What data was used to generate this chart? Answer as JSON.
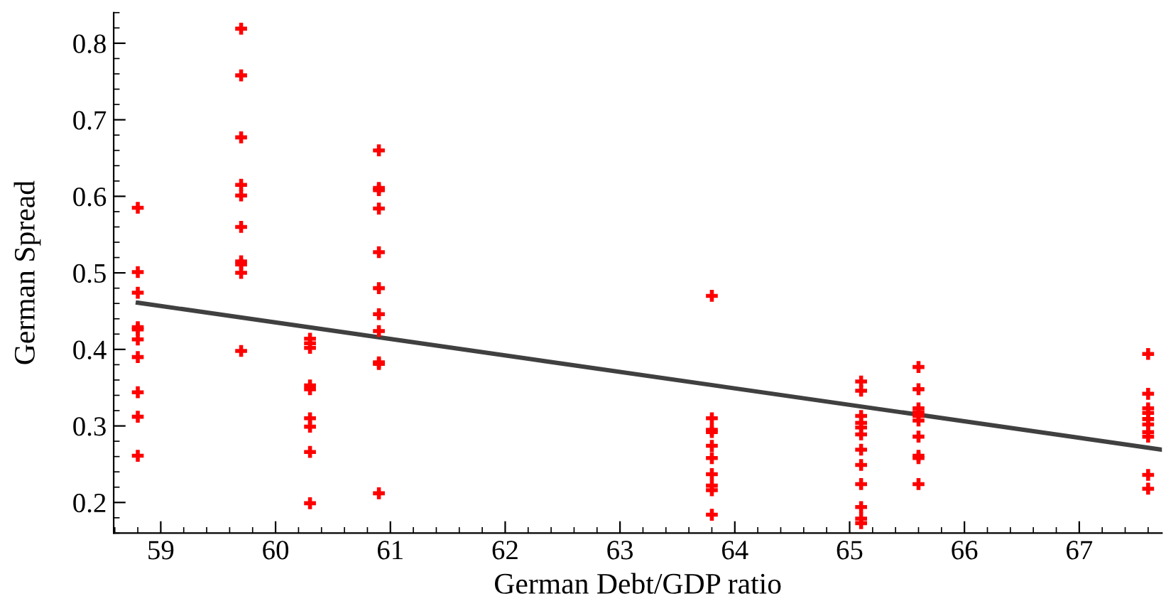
{
  "chart_data": {
    "type": "scatter",
    "xlabel": "German Debt/GDP ratio",
    "ylabel": "German Spread",
    "xlim": [
      58.59,
      67.72
    ],
    "xticks": [
      59,
      60,
      61,
      62,
      63,
      64,
      65,
      66,
      67
    ],
    "ylim": [
      0.16,
      0.84
    ],
    "yticks": [
      0.2,
      0.3,
      0.4,
      0.5,
      0.6,
      0.7,
      0.8
    ],
    "grid": false,
    "series": [
      {
        "color": "#ff0000",
        "marker": "cross",
        "x": [
          58.8,
          58.8,
          58.8,
          58.8,
          58.8,
          58.8,
          58.8,
          58.8,
          58.8,
          58.8,
          59.7,
          59.7,
          59.7,
          59.7,
          59.7,
          59.7,
          59.7,
          59.7,
          59.7,
          59.7,
          60.3,
          60.3,
          60.3,
          60.3,
          60.3,
          60.3,
          60.3,
          60.3,
          60.3,
          60.9,
          60.9,
          60.9,
          60.9,
          60.9,
          60.9,
          60.9,
          60.9,
          60.9,
          60.9,
          60.9,
          63.8,
          63.8,
          63.8,
          63.8,
          63.8,
          63.8,
          63.8,
          63.8,
          63.8,
          63.8,
          65.1,
          65.1,
          65.1,
          65.1,
          65.1,
          65.1,
          65.1,
          65.1,
          65.1,
          65.1,
          65.1,
          65.1,
          65.6,
          65.6,
          65.6,
          65.6,
          65.6,
          65.6,
          65.6,
          65.6,
          65.6,
          65.6,
          67.6,
          67.6,
          67.6,
          67.6,
          67.6,
          67.6,
          67.6,
          67.6,
          67.6,
          67.6
        ],
        "values": [
          0.585,
          0.501,
          0.474,
          0.429,
          0.426,
          0.413,
          0.39,
          0.344,
          0.312,
          0.261,
          0.819,
          0.758,
          0.677,
          0.615,
          0.601,
          0.56,
          0.515,
          0.511,
          0.5,
          0.398,
          0.414,
          0.408,
          0.402,
          0.353,
          0.348,
          0.31,
          0.299,
          0.266,
          0.199,
          0.66,
          0.611,
          0.608,
          0.584,
          0.527,
          0.48,
          0.446,
          0.424,
          0.383,
          0.381,
          0.212,
          0.47,
          0.31,
          0.295,
          0.292,
          0.274,
          0.258,
          0.237,
          0.222,
          0.216,
          0.184,
          0.358,
          0.346,
          0.313,
          0.304,
          0.298,
          0.289,
          0.269,
          0.249,
          0.224,
          0.194,
          0.179,
          0.173,
          0.377,
          0.348,
          0.323,
          0.318,
          0.313,
          0.307,
          0.286,
          0.261,
          0.258,
          0.224,
          0.394,
          0.342,
          0.323,
          0.317,
          0.309,
          0.302,
          0.292,
          0.286,
          0.236,
          0.218
        ]
      },
      {
        "type": "line",
        "color": "#404040",
        "x": [
          58.8,
          67.72
        ],
        "values": [
          0.461,
          0.269
        ]
      }
    ]
  }
}
